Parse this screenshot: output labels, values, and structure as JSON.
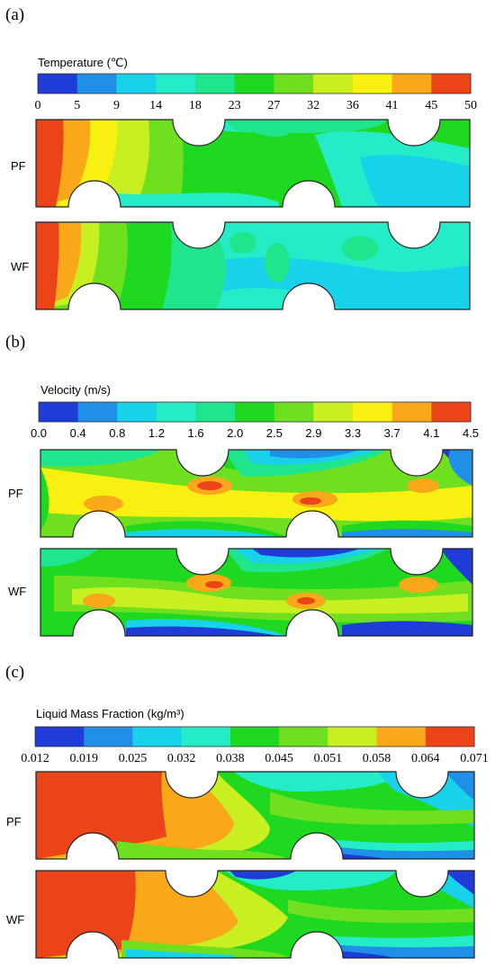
{
  "panels": [
    {
      "label": "(a)",
      "colorbar_title": "Temperature (℃)",
      "ticks": [
        "0",
        "5",
        "9",
        "14",
        "18",
        "23",
        "27",
        "32",
        "36",
        "41",
        "45",
        "50"
      ],
      "cases": [
        "PF",
        "WF"
      ]
    },
    {
      "label": "(b)",
      "colorbar_title": "Velocity (m/s)",
      "ticks": [
        "0.0",
        "0.4",
        "0.8",
        "1.2",
        "1.6",
        "2.0",
        "2.5",
        "2.9",
        "3.3",
        "3.7",
        "4.1",
        "4.5"
      ],
      "cases": [
        "PF",
        "WF"
      ]
    },
    {
      "label": "(c)",
      "colorbar_title": "Liquid Mass Fraction (kg/m³)",
      "ticks": [
        "0.012",
        "0.019",
        "0.025",
        "0.032",
        "0.038",
        "0.045",
        "0.051",
        "0.058",
        "0.064",
        "0.071"
      ],
      "cases": [
        "PF",
        "WF"
      ]
    }
  ],
  "colors": {
    "scale11": [
      "#1f3bd8",
      "#1f8fe8",
      "#18d2ea",
      "#25ecc8",
      "#1fe58c",
      "#1fd820",
      "#6fe020",
      "#c8f020",
      "#f8f010",
      "#f8a818",
      "#ec4418"
    ],
    "scale9": [
      "#1f3bd8",
      "#1f8fe8",
      "#18d2ea",
      "#25ecc8",
      "#1fd820",
      "#6fe020",
      "#c8f020",
      "#f8a818",
      "#ec4418"
    ]
  }
}
